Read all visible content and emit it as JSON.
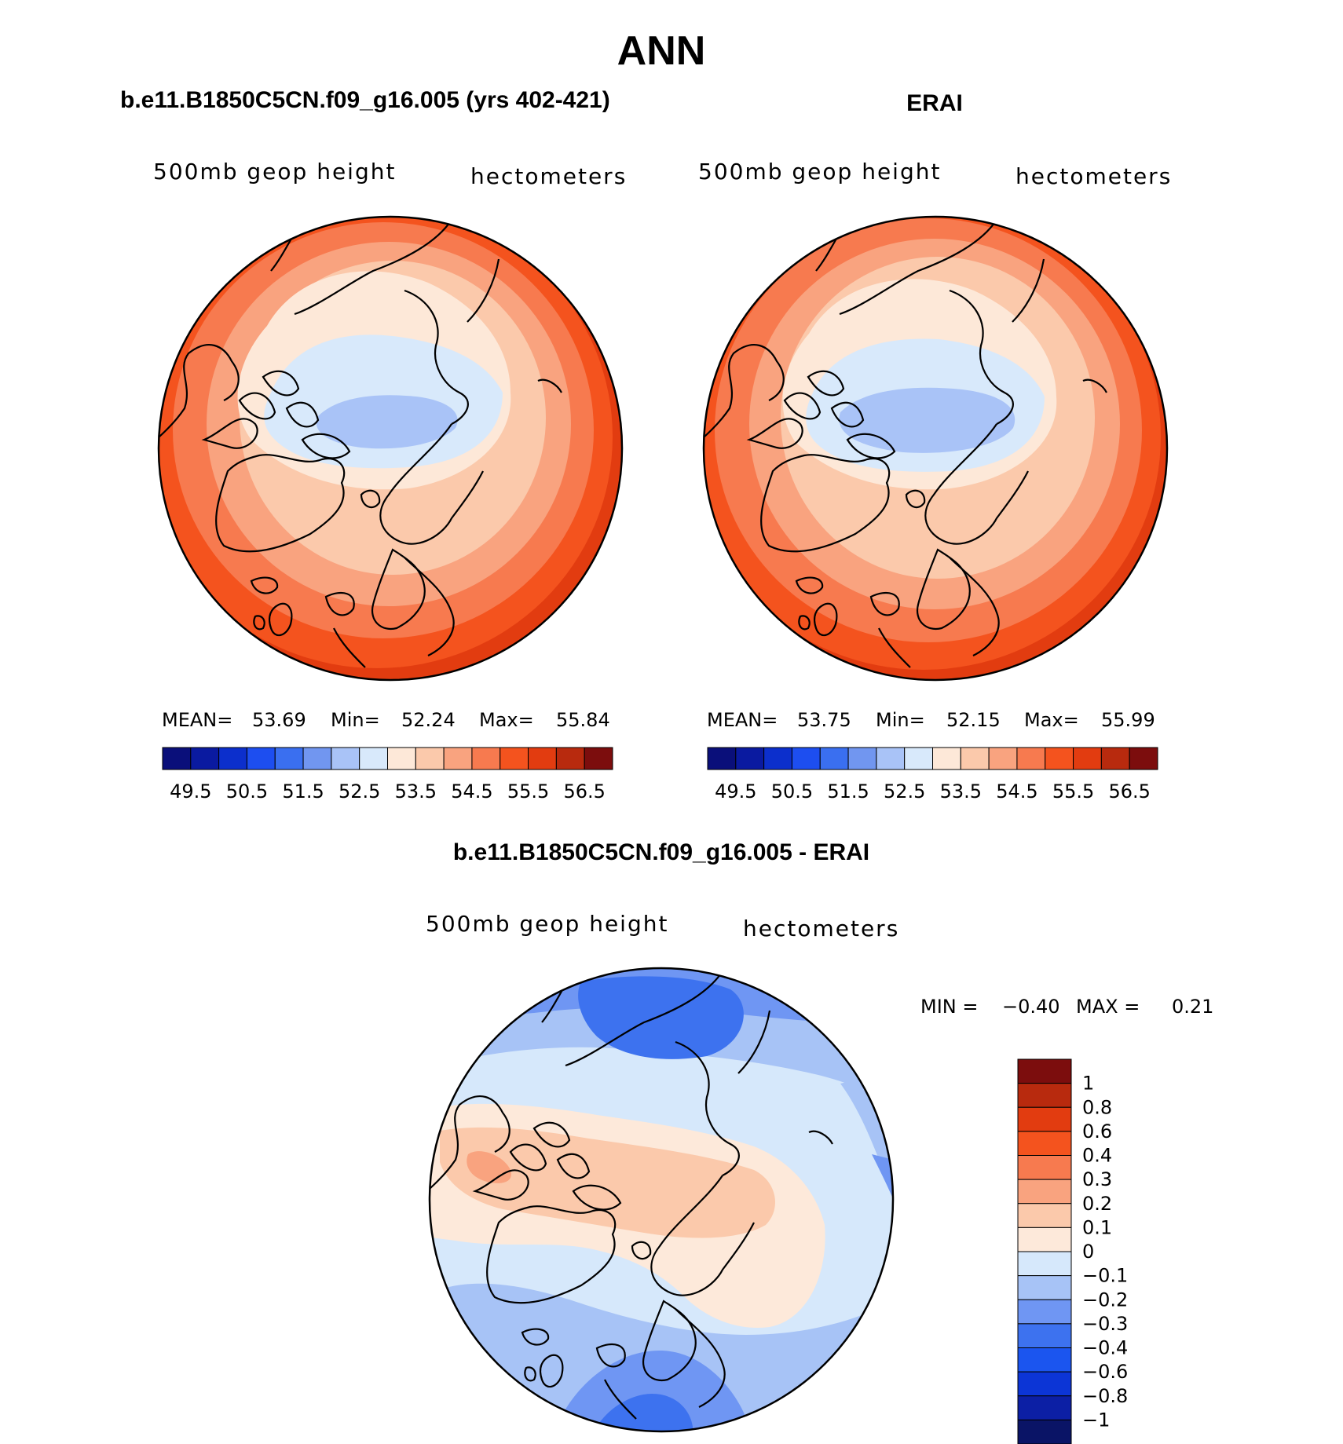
{
  "title": "ANN",
  "colors": {
    "main_colorbar": [
      "#0a0f7a",
      "#0a1aa0",
      "#0c2fcc",
      "#1d4ef0",
      "#3a6ff0",
      "#7196f0",
      "#a9c3f7",
      "#d8e9fb",
      "#fde8d8",
      "#fbc9ab",
      "#f9a37f",
      "#f77a4f",
      "#f4531e",
      "#e23c10",
      "#b82a0e",
      "#7c0d0d"
    ],
    "diff_colorbar": [
      "#0a1466",
      "#0c1fa5",
      "#0c35d6",
      "#1b55ef",
      "#3d72ef",
      "#6f96f3",
      "#a7c3f6",
      "#d6e8fb",
      "#fde9da",
      "#fbc9ab",
      "#f9a37f",
      "#f77a4f",
      "#f4531e",
      "#e23c10",
      "#b82a0e",
      "#7c0d0d"
    ],
    "land_outline": "#000000"
  },
  "chart_data": [
    {
      "type": "heatmap",
      "projection": "north polar stereographic",
      "title": "b.e11.B1850C5CN.f09_g16.005 (yrs 402-421)",
      "left_label": "500mb geop height",
      "right_label": "hectometers",
      "stats": {
        "mean_label": "MEAN=",
        "mean": "53.69",
        "min_label": "Min=",
        "min": "52.24",
        "max_label": "Max=",
        "max": "55.84"
      },
      "levels": [
        49.5,
        50,
        50.5,
        51,
        51.5,
        52,
        52.5,
        53,
        53.5,
        54,
        54.5,
        55,
        55.5,
        56,
        56.5
      ],
      "colorbar_labels": [
        "49.5",
        "50.5",
        "51.5",
        "52.5",
        "53.5",
        "54.5",
        "55.5",
        "56.5"
      ],
      "colorbar_orientation": "horizontal"
    },
    {
      "type": "heatmap",
      "projection": "north polar stereographic",
      "title": "ERAI",
      "left_label": "500mb geop height",
      "right_label": "hectometers",
      "stats": {
        "mean_label": "MEAN=",
        "mean": "53.75",
        "min_label": "Min=",
        "min": "52.15",
        "max_label": "Max=",
        "max": "55.99"
      },
      "levels": [
        49.5,
        50,
        50.5,
        51,
        51.5,
        52,
        52.5,
        53,
        53.5,
        54,
        54.5,
        55,
        55.5,
        56,
        56.5
      ],
      "colorbar_labels": [
        "49.5",
        "50.5",
        "51.5",
        "52.5",
        "53.5",
        "54.5",
        "55.5",
        "56.5"
      ],
      "colorbar_orientation": "horizontal"
    },
    {
      "type": "heatmap",
      "projection": "north polar stereographic",
      "title": "b.e11.B1850C5CN.f09_g16.005 - ERAI",
      "left_label": "500mb geop height",
      "right_label": "hectometers",
      "stats": {
        "min_label": "MIN =",
        "min": "−0.40",
        "max_label": "MAX =",
        "max": "0.21"
      },
      "levels": [
        -1,
        -0.8,
        -0.6,
        -0.4,
        -0.3,
        -0.2,
        -0.1,
        0,
        0.1,
        0.2,
        0.3,
        0.4,
        0.6,
        0.8,
        1
      ],
      "colorbar_labels": [
        "1",
        "0.8",
        "0.6",
        "0.4",
        "0.3",
        "0.2",
        "0.1",
        "0",
        "−0.1",
        "−0.2",
        "−0.3",
        "−0.4",
        "−0.6",
        "−0.8",
        "−1"
      ],
      "colorbar_orientation": "vertical"
    }
  ]
}
